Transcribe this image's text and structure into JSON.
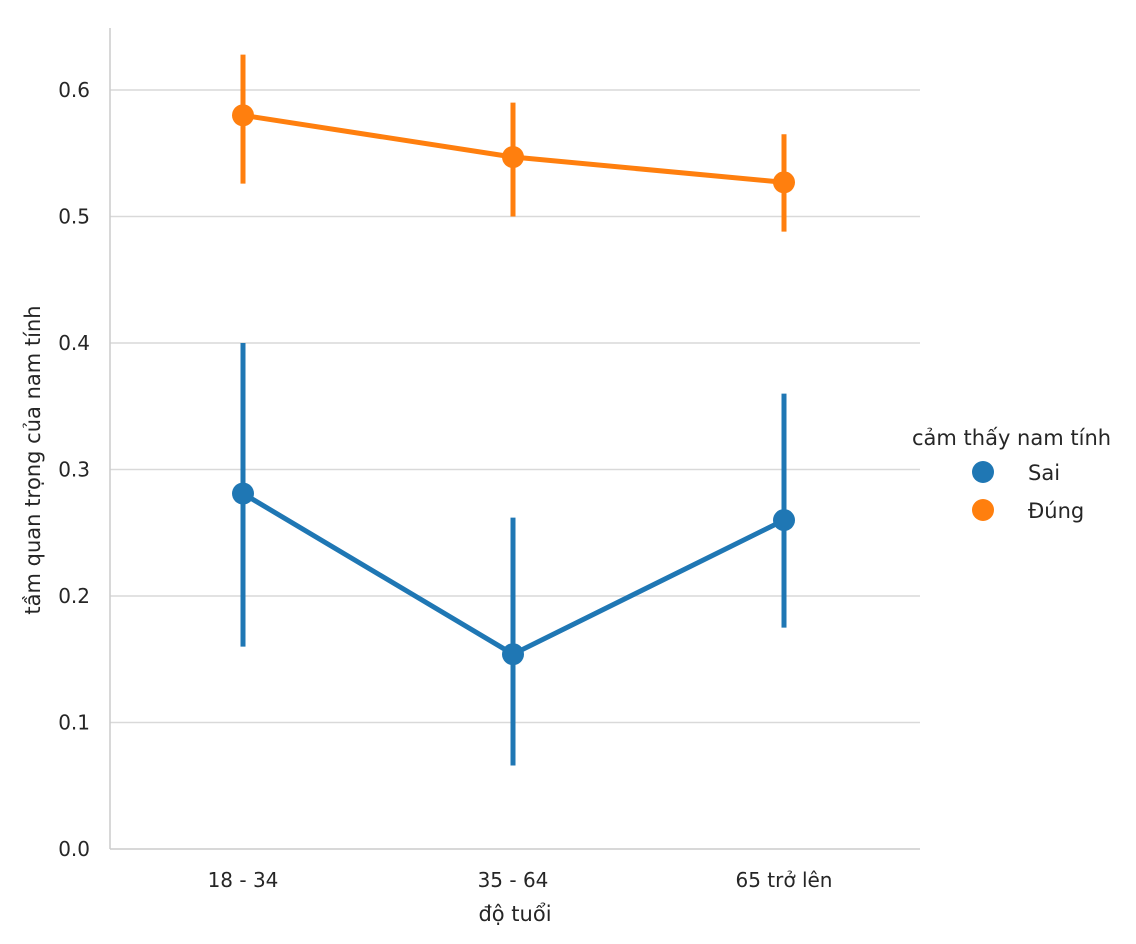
{
  "chart_data": {
    "type": "line",
    "categories": [
      "18 - 34",
      "35 - 64",
      "65 trở lên"
    ],
    "xlabel": "độ tuổi",
    "ylabel": "tầm quan trọng của nam tính",
    "ylim": [
      0.0,
      0.65
    ],
    "yticks": [
      "0.0",
      "0.1",
      "0.2",
      "0.3",
      "0.4",
      "0.5",
      "0.6"
    ],
    "grid": "horizontal",
    "legend": {
      "title": "cảm thấy nam tính",
      "placement": "right"
    },
    "series": [
      {
        "name": "Sai",
        "color": "#1f77b4",
        "values": [
          0.281,
          0.154,
          0.26
        ],
        "ci_low": [
          0.16,
          0.066,
          0.175
        ],
        "ci_high": [
          0.4,
          0.262,
          0.36
        ]
      },
      {
        "name": "Đúng",
        "color": "#ff7f0e",
        "values": [
          0.58,
          0.547,
          0.527
        ],
        "ci_low": [
          0.526,
          0.5,
          0.488
        ],
        "ci_high": [
          0.628,
          0.59,
          0.565
        ]
      }
    ]
  }
}
